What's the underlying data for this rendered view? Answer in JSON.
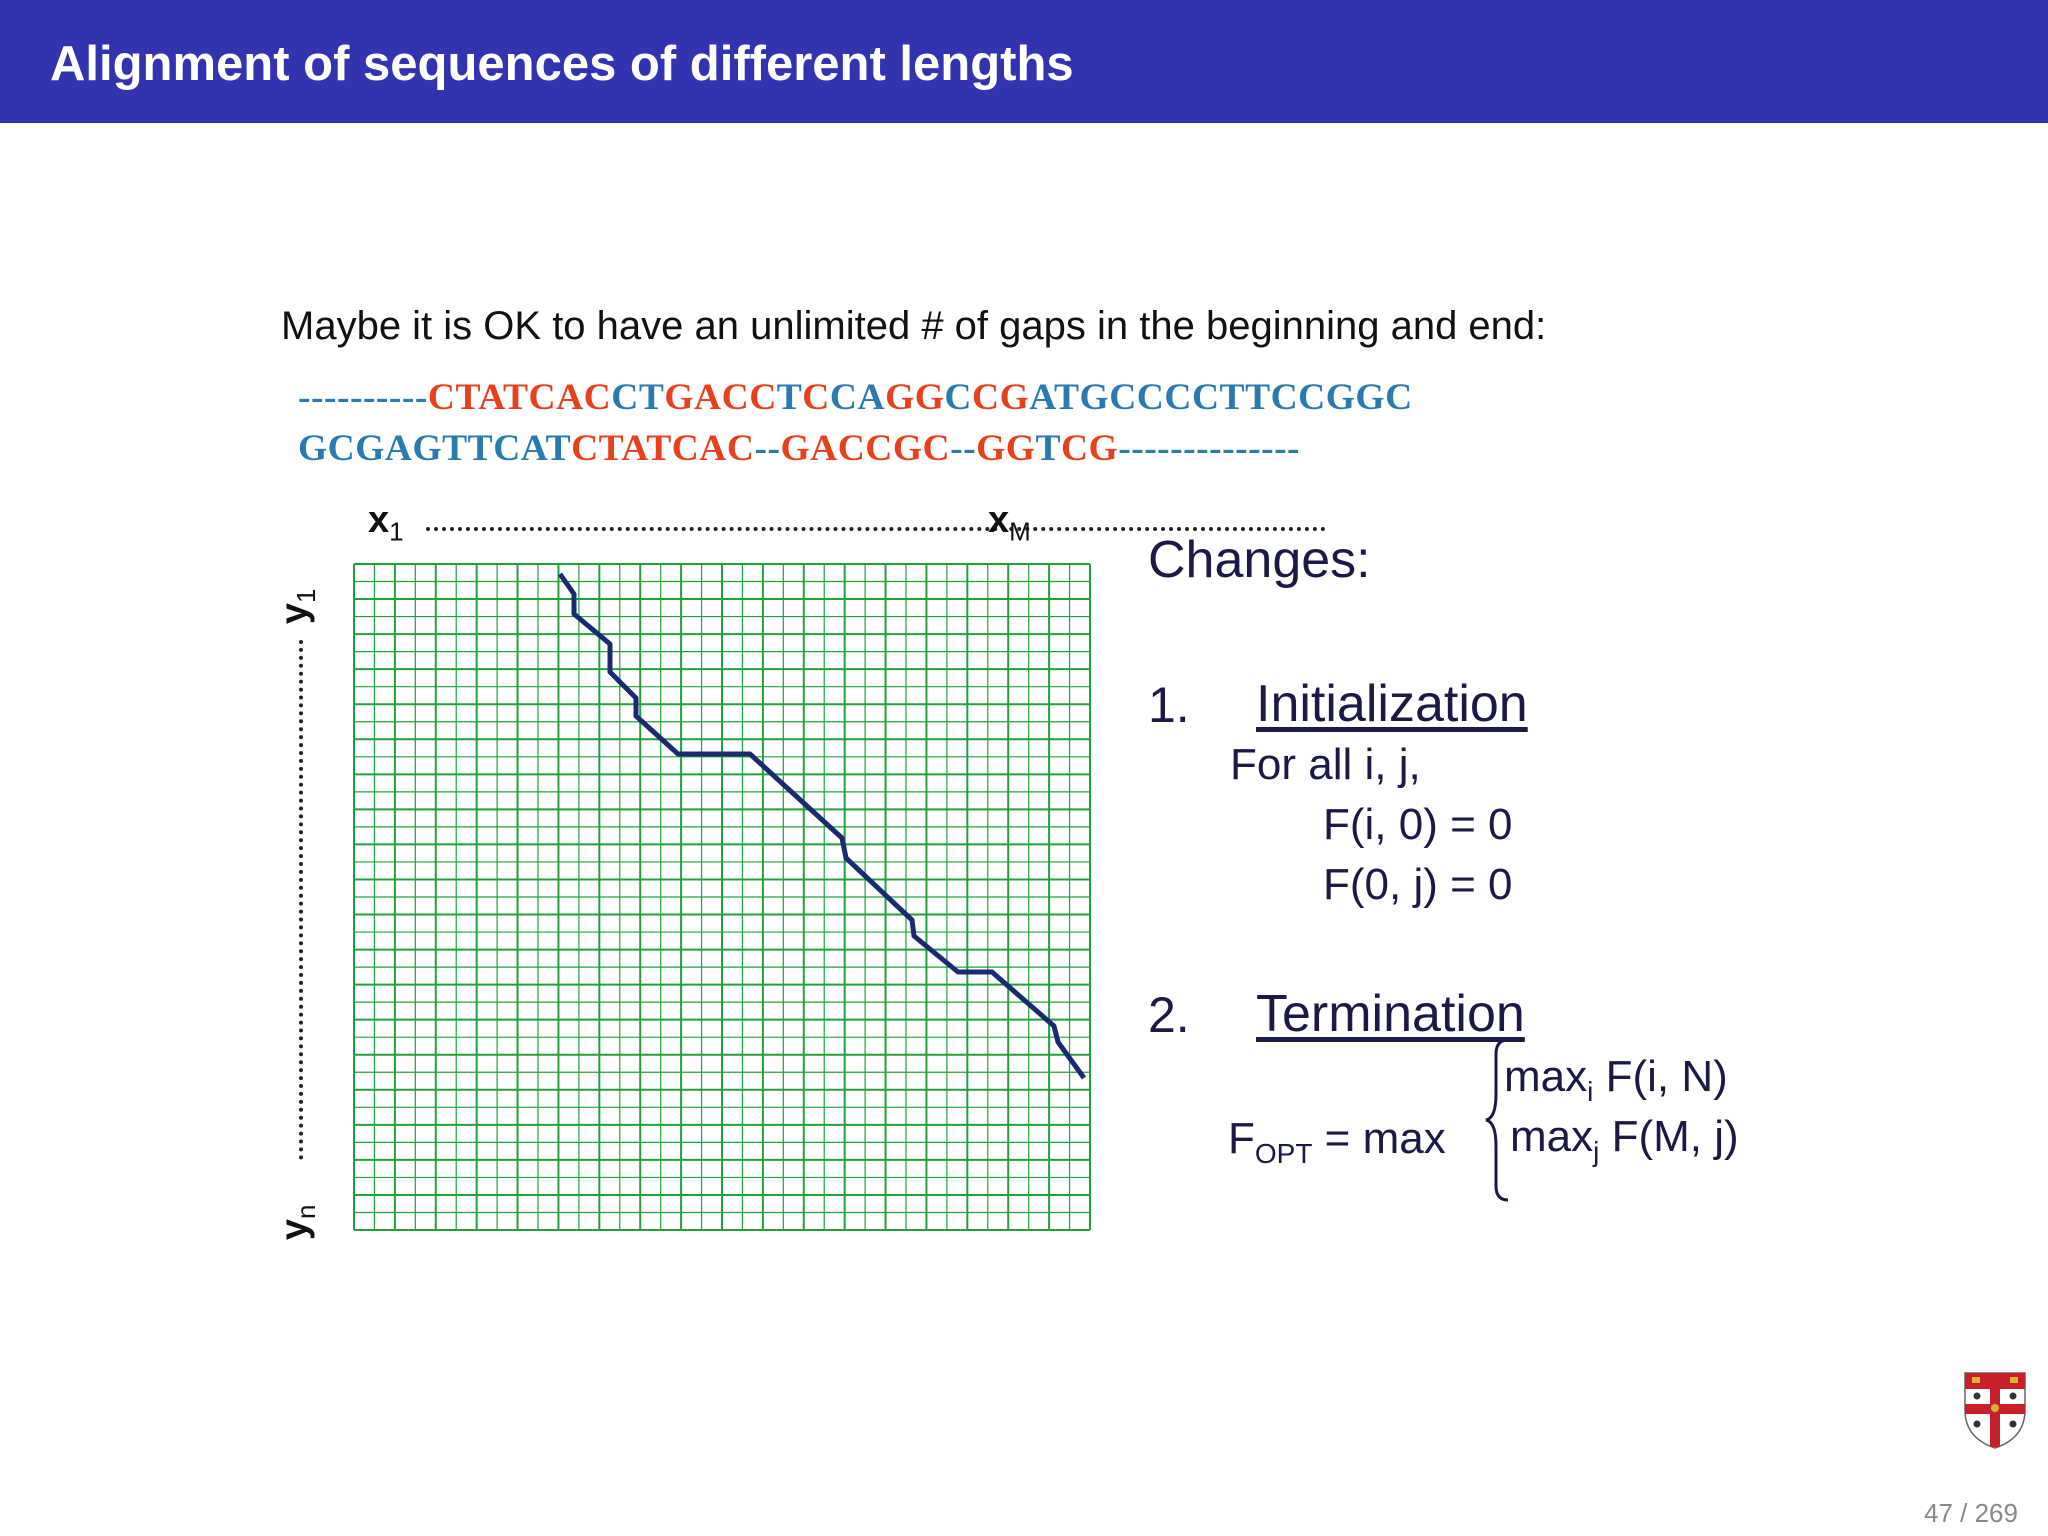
{
  "slide": {
    "title": "Alignment of sequences of different lengths",
    "intro": "Maybe it is OK to have an unlimited # of gaps in the beginning and end:",
    "page": "47 / 269"
  },
  "alignment": {
    "seq1": [
      {
        "text": "----------",
        "color": "#2a7ab0"
      },
      {
        "text": "CTATCAC",
        "color": "#e8401c"
      },
      {
        "text": "CT",
        "color": "#2a7ab0"
      },
      {
        "text": "GACC",
        "color": "#e8401c"
      },
      {
        "text": "T",
        "color": "#2a7ab0"
      },
      {
        "text": "C",
        "color": "#e8401c"
      },
      {
        "text": "CA",
        "color": "#2a7ab0"
      },
      {
        "text": "GG",
        "color": "#e8401c"
      },
      {
        "text": "C",
        "color": "#2a7ab0"
      },
      {
        "text": "CG",
        "color": "#e8401c"
      },
      {
        "text": "ATGCCCCTTCCGGC",
        "color": "#2a7ab0"
      }
    ],
    "seq2": [
      {
        "text": "GCGAGTTCAT",
        "color": "#2a7ab0"
      },
      {
        "text": "CTATCAC",
        "color": "#e8401c"
      },
      {
        "text": "--",
        "color": "#2a7ab0"
      },
      {
        "text": "GACCGC",
        "color": "#e8401c"
      },
      {
        "text": "--",
        "color": "#2a7ab0"
      },
      {
        "text": "GG",
        "color": "#e8401c"
      },
      {
        "text": "T",
        "color": "#2a7ab0"
      },
      {
        "text": "CG",
        "color": "#e8401c"
      },
      {
        "text": "--------------",
        "color": "#2a7ab0"
      }
    ]
  },
  "matrix": {
    "x_start": "x",
    "x_start_sub": "1",
    "x_end": "x",
    "x_end_sub": "M",
    "y_start": "y",
    "y_start_sub": "1",
    "y_end": "y",
    "y_end_sub": "n",
    "grid_color": "#22a03a",
    "path_color": "#1a2a6e"
  },
  "changes": {
    "heading": "Changes:",
    "step1_num": "1.",
    "step1_title": "Initialization",
    "step1_line1": "For all i, j,",
    "step1_line2": "F(i, 0) = 0",
    "step1_line3": "F(0, j) = 0",
    "step2_num": "2.",
    "step2_title": "Termination",
    "fopt_F": "F",
    "fopt_sub": "OPT",
    "fopt_rest": " = max",
    "max1_pre": "max",
    "max1_sub": "i",
    "max1_post": " F(i, N)",
    "max2_pre": "max",
    "max2_sub": "j",
    "max2_post": " F(M, j)"
  },
  "colors": {
    "header_bg": "#3333b0",
    "seq_blue": "#2a7ab0",
    "seq_red": "#e8401c"
  }
}
